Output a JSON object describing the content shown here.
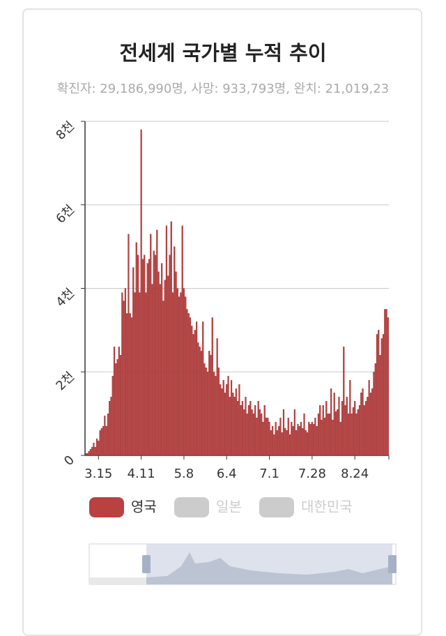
{
  "chart_data": {
    "type": "bar",
    "title": "전세계 국가별 누적 추이",
    "subtitle": "확진자: 29,186,990명, 사망: 933,793명, 완치: 21,019,23",
    "categories": [
      null,
      null,
      null,
      null,
      null,
      null,
      null,
      null,
      "3.15",
      null,
      null,
      null,
      null,
      null,
      null,
      null,
      null,
      null,
      null,
      null,
      null,
      null,
      null,
      null,
      null,
      null,
      null,
      null,
      null,
      null,
      null,
      null,
      null,
      null,
      null,
      "4.11",
      null,
      null,
      null,
      null,
      null,
      null,
      null,
      null,
      null,
      null,
      null,
      null,
      null,
      null,
      null,
      null,
      null,
      null,
      null,
      null,
      null,
      null,
      null,
      null,
      null,
      null,
      "5.8",
      null,
      null,
      null,
      null,
      null,
      null,
      null,
      null,
      null,
      null,
      null,
      null,
      null,
      null,
      null,
      null,
      null,
      null,
      null,
      null,
      null,
      null,
      null,
      null,
      null,
      null,
      "6.4",
      null,
      null,
      null,
      null,
      null,
      null,
      null,
      null,
      null,
      null,
      null,
      null,
      null,
      null,
      null,
      null,
      null,
      null,
      null,
      null,
      null,
      null,
      null,
      null,
      null,
      null,
      "7.1",
      null,
      null,
      null,
      null,
      null,
      null,
      null,
      null,
      null,
      null,
      null,
      null,
      null,
      null,
      null,
      null,
      null,
      null,
      null,
      null,
      null,
      null,
      null,
      null,
      null,
      null,
      "7.28",
      null,
      null,
      null,
      null,
      null,
      null,
      null,
      null,
      null,
      null,
      null,
      null,
      null,
      null,
      null,
      null,
      null,
      null,
      null,
      null,
      null,
      null,
      null,
      null,
      null,
      null,
      "8.24",
      null,
      null,
      null,
      null,
      null,
      null,
      null,
      null,
      null,
      null,
      null,
      null,
      null,
      null,
      null,
      null,
      null,
      null,
      null,
      null,
      null
    ],
    "series": [
      {
        "name": "영국",
        "color": "#b94141",
        "values": [
          50,
          50,
          100,
          150,
          200,
          300,
          200,
          400,
          350,
          600,
          650,
          700,
          950,
          700,
          1000,
          1300,
          1400,
          1900,
          2600,
          2200,
          2300,
          2600,
          2400,
          3900,
          3700,
          4000,
          3400,
          5300,
          3400,
          3300,
          4500,
          3900,
          5100,
          4800,
          3900,
          7800,
          4700,
          4800,
          3900,
          4600,
          4700,
          5300,
          4100,
          4900,
          4800,
          5400,
          4400,
          4100,
          4600,
          3700,
          4200,
          5500,
          4300,
          4800,
          5600,
          3900,
          5000,
          4400,
          4000,
          3800,
          3900,
          5500,
          4000,
          3800,
          3500,
          3400,
          3300,
          3100,
          2900,
          3000,
          3200,
          2700,
          2600,
          2500,
          3200,
          2200,
          2100,
          2000,
          2500,
          2400,
          3300,
          2000,
          1900,
          2800,
          2100,
          1700,
          1600,
          1800,
          1500,
          1700,
          1900,
          1400,
          1800,
          1500,
          1400,
          1600,
          1300,
          1700,
          1200,
          1300,
          1100,
          1400,
          1000,
          1200,
          1300,
          1100,
          1000,
          1200,
          900,
          1300,
          1100,
          1000,
          800,
          1200,
          900,
          900,
          800,
          600,
          700,
          500,
          800,
          600,
          700,
          900,
          550,
          1100,
          650,
          600,
          900,
          500,
          800,
          700,
          1100,
          600,
          750,
          700,
          800,
          650,
          1000,
          600,
          550,
          800,
          750,
          800,
          750,
          900,
          700,
          1000,
          1200,
          850,
          1200,
          900,
          1300,
          1000,
          1000,
          1600,
          850,
          1500,
          1050,
          1100,
          1400,
          800,
          1300,
          2600,
          1200,
          1400,
          1000,
          1800,
          1000,
          1150,
          1300,
          1000,
          1100,
          1200,
          1500,
          1600,
          1200,
          1300,
          1400,
          1800,
          1500,
          1600,
          2000,
          2200,
          2900,
          3000,
          2400,
          2800,
          2900,
          3500,
          3500,
          3300
        ]
      },
      {
        "name": "일본",
        "color": "#cccccc"
      },
      {
        "name": "대한민국",
        "color": "#cccccc"
      }
    ],
    "ylim": [
      0,
      8000
    ],
    "yticks": [
      0,
      {
        "value": 2000,
        "label": "2천"
      },
      {
        "value": 4000,
        "label": "4천"
      },
      {
        "value": 6000,
        "label": "6천"
      },
      {
        "value": 8000,
        "label": "8천"
      }
    ],
    "grid": true
  }
}
